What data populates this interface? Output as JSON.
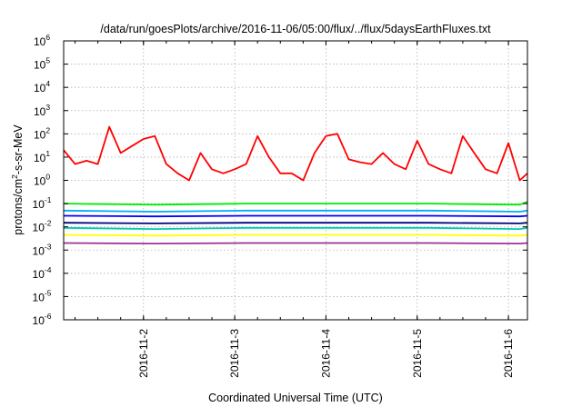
{
  "chart_data": {
    "type": "line",
    "title": "/data/run/goesPlots/archive/2016-11-06/05:00/flux/../flux/5daysEarthFluxes.txt",
    "xlabel": "Coordinated Universal Time (UTC)",
    "ylabel_parts": [
      "protons/cm",
      "2",
      "-s-sr-MeV"
    ],
    "yscale": "log",
    "ylim": [
      1e-06,
      1000000.0
    ],
    "y_tick_exponents": [
      -6,
      -5,
      -4,
      -3,
      -2,
      -1,
      0,
      1,
      2,
      3,
      4,
      5,
      6
    ],
    "y_tick_base": "10",
    "xlim": [
      "2016-11-01T03:00",
      "2016-11-06T05:00"
    ],
    "x_ticks": [
      "2016-11-2",
      "2016-11-3",
      "2016-11-4",
      "2016-11-5",
      "2016-11-6"
    ],
    "grid": true,
    "legend": "none",
    "series": [
      {
        "color": "#ff0000",
        "x": [
          "2016-11-01T03:00",
          "2016-11-01T06:00",
          "2016-11-01T09:00",
          "2016-11-01T12:00",
          "2016-11-01T15:00",
          "2016-11-01T18:00",
          "2016-11-01T21:00",
          "2016-11-02T00:00",
          "2016-11-02T03:00",
          "2016-11-02T06:00",
          "2016-11-02T09:00",
          "2016-11-02T12:00",
          "2016-11-02T15:00",
          "2016-11-02T18:00",
          "2016-11-02T21:00",
          "2016-11-03T00:00",
          "2016-11-03T03:00",
          "2016-11-03T06:00",
          "2016-11-03T09:00",
          "2016-11-03T12:00",
          "2016-11-03T15:00",
          "2016-11-03T18:00",
          "2016-11-03T21:00",
          "2016-11-04T00:00",
          "2016-11-04T03:00",
          "2016-11-04T06:00",
          "2016-11-04T09:00",
          "2016-11-04T12:00",
          "2016-11-04T15:00",
          "2016-11-04T18:00",
          "2016-11-04T21:00",
          "2016-11-05T00:00",
          "2016-11-05T03:00",
          "2016-11-05T06:00",
          "2016-11-05T09:00",
          "2016-11-05T12:00",
          "2016-11-05T15:00",
          "2016-11-05T18:00",
          "2016-11-05T21:00",
          "2016-11-06T00:00",
          "2016-11-06T03:00",
          "2016-11-06T05:00"
        ],
        "values": [
          20,
          5,
          7,
          5,
          200,
          15,
          30,
          60,
          80,
          5,
          2,
          1,
          15,
          3,
          2,
          3,
          5,
          80,
          10,
          2,
          2,
          1,
          15,
          80,
          100,
          8,
          6,
          5,
          15,
          5,
          3,
          50,
          5,
          3,
          2,
          80,
          15,
          3,
          2,
          40,
          1,
          2
        ]
      },
      {
        "color": "#00ee00",
        "x": [
          "2016-11-01T03:00",
          "2016-11-02T03:00",
          "2016-11-03T03:00",
          "2016-11-04T03:00",
          "2016-11-05T03:00",
          "2016-11-06T03:00",
          "2016-11-06T05:00"
        ],
        "values": [
          0.1,
          0.09,
          0.1,
          0.1,
          0.1,
          0.09,
          0.12
        ]
      },
      {
        "color": "#00aaff",
        "x": [
          "2016-11-01T03:00",
          "2016-11-02T03:00",
          "2016-11-03T03:00",
          "2016-11-04T03:00",
          "2016-11-05T03:00",
          "2016-11-06T03:00",
          "2016-11-06T05:00"
        ],
        "values": [
          0.05,
          0.045,
          0.05,
          0.05,
          0.05,
          0.045,
          0.05
        ]
      },
      {
        "color": "#0000ff",
        "x": [
          "2016-11-01T03:00",
          "2016-11-02T03:00",
          "2016-11-03T03:00",
          "2016-11-04T03:00",
          "2016-11-05T03:00",
          "2016-11-06T03:00",
          "2016-11-06T05:00"
        ],
        "values": [
          0.03,
          0.028,
          0.03,
          0.03,
          0.03,
          0.028,
          0.03
        ]
      },
      {
        "color": "#000080",
        "x": [
          "2016-11-01T03:00",
          "2016-11-02T03:00",
          "2016-11-03T03:00",
          "2016-11-04T03:00",
          "2016-11-05T03:00",
          "2016-11-06T03:00",
          "2016-11-06T05:00"
        ],
        "values": [
          0.015,
          0.014,
          0.015,
          0.015,
          0.015,
          0.014,
          0.015
        ]
      },
      {
        "color": "#00ccaa",
        "x": [
          "2016-11-01T03:00",
          "2016-11-02T03:00",
          "2016-11-03T03:00",
          "2016-11-04T03:00",
          "2016-11-05T03:00",
          "2016-11-06T03:00",
          "2016-11-06T05:00"
        ],
        "values": [
          0.009,
          0.008,
          0.009,
          0.009,
          0.009,
          0.008,
          0.009
        ]
      },
      {
        "color": "#ffff00",
        "x": [
          "2016-11-01T03:00",
          "2016-11-02T03:00",
          "2016-11-03T03:00",
          "2016-11-04T03:00",
          "2016-11-05T03:00",
          "2016-11-06T03:00",
          "2016-11-06T05:00"
        ],
        "values": [
          0.0045,
          0.0042,
          0.0045,
          0.0045,
          0.0045,
          0.0042,
          0.0045
        ]
      },
      {
        "color": "#993399",
        "x": [
          "2016-11-01T03:00",
          "2016-11-02T03:00",
          "2016-11-03T03:00",
          "2016-11-04T03:00",
          "2016-11-05T03:00",
          "2016-11-06T03:00",
          "2016-11-06T05:00"
        ],
        "values": [
          0.002,
          0.0019,
          0.002,
          0.002,
          0.002,
          0.0019,
          0.002
        ]
      }
    ]
  }
}
